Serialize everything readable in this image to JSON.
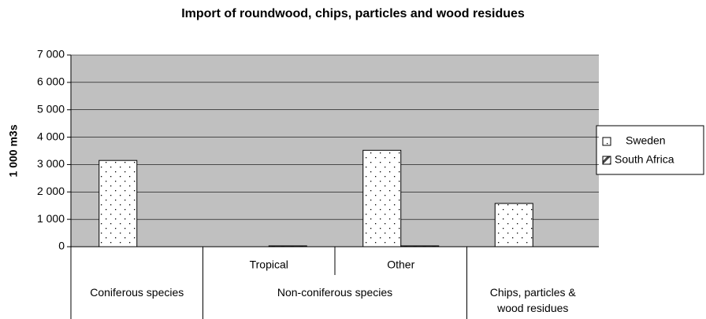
{
  "chart_data": {
    "type": "bar",
    "title": "Import of roundwood, chips, particles and wood residues",
    "y_label": "1 000 m3s",
    "categories": [
      null,
      "Tropical",
      "Other",
      null
    ],
    "category_groups": [
      "Coniferous species",
      "Non-coniferous species",
      "Non-coniferous species",
      "Chips, particles & wood residues"
    ],
    "series": [
      {
        "name": "Sweden",
        "color": "#ffffff",
        "values": [
          3150,
          0,
          3520,
          1580
        ]
      },
      {
        "name": "South Africa",
        "color": "#444444",
        "values": [
          0,
          30,
          30,
          0
        ]
      }
    ],
    "ylim": [
      0,
      7000
    ],
    "yticks": [
      0,
      {
        "value": 1000,
        "label": "1 000"
      },
      {
        "value": 2000,
        "label": "2 000"
      },
      {
        "value": 3000,
        "label": "3 000"
      },
      {
        "value": 4000,
        "label": "4 000"
      },
      {
        "value": 5000,
        "label": "5 000"
      },
      {
        "value": 6000,
        "label": "6 000"
      },
      {
        "value": 7000,
        "label": "7 000"
      }
    ],
    "grid": true,
    "legend": "right"
  }
}
